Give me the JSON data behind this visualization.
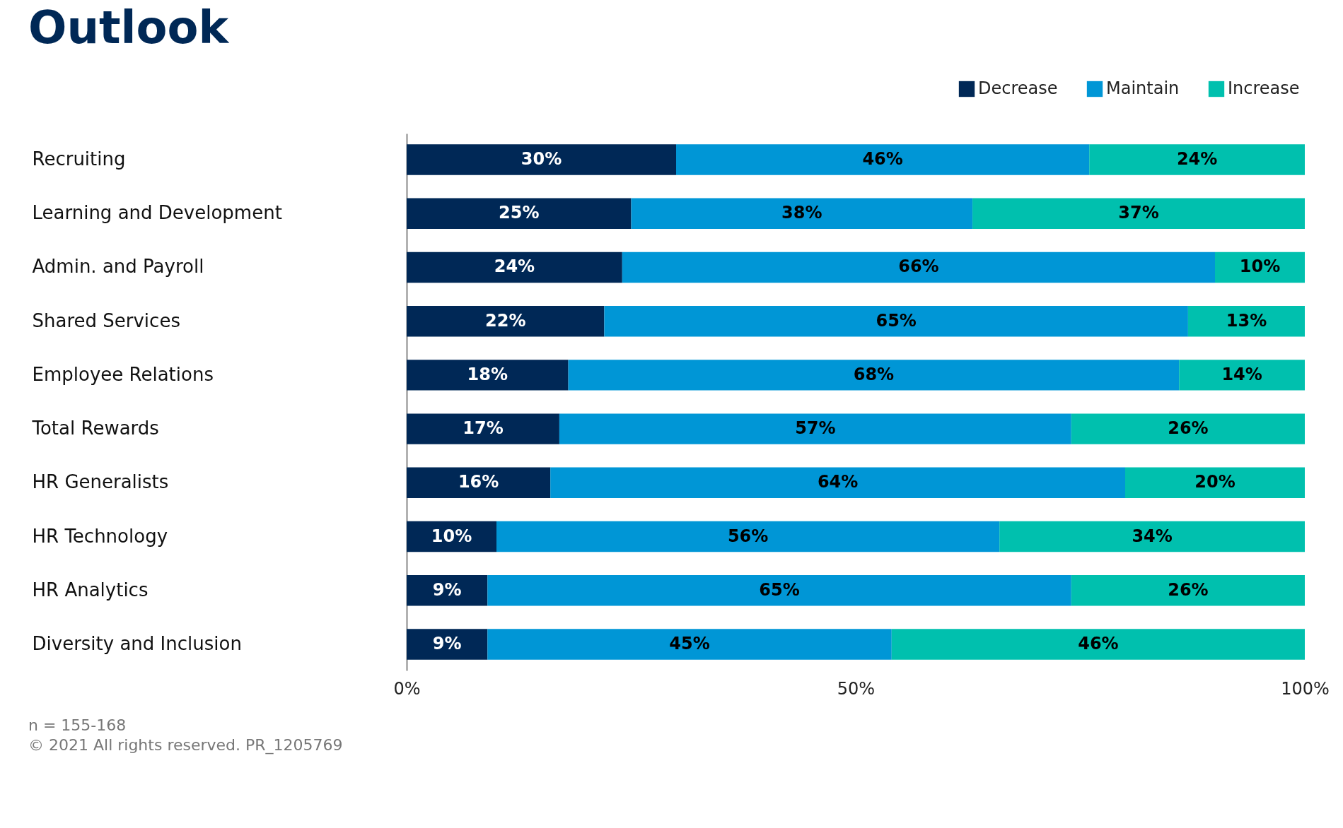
{
  "chart_data": {
    "type": "bar",
    "orientation": "horizontal",
    "stacked": true,
    "title": "Outlook",
    "categories": [
      "Recruiting",
      "Learning and Development",
      "Admin. and Payroll",
      "Shared Services",
      "Employee Relations",
      "Total Rewards",
      "HR Generalists",
      "HR Technology",
      "HR Analytics",
      "Diversity and Inclusion"
    ],
    "series": [
      {
        "name": "Decrease",
        "color": "#002856",
        "values": [
          30,
          25,
          24,
          22,
          18,
          17,
          16,
          10,
          9,
          9
        ],
        "value_labels": [
          "30%",
          "25%",
          "24%",
          "22%",
          "18%",
          "17%",
          "16%",
          "10%",
          "9%",
          "9%"
        ]
      },
      {
        "name": "Maintain",
        "color": "#0096d6",
        "values": [
          46,
          38,
          66,
          65,
          68,
          57,
          64,
          56,
          65,
          45
        ],
        "value_labels": [
          "46%",
          "38%",
          "66%",
          "65%",
          "68%",
          "57%",
          "64%",
          "56%",
          "65%",
          "45%"
        ]
      },
      {
        "name": "Increase",
        "color": "#00c0ae",
        "values": [
          24,
          37,
          10,
          13,
          14,
          26,
          20,
          34,
          26,
          46
        ],
        "value_labels": [
          "24%",
          "37%",
          "10%",
          "13%",
          "14%",
          "26%",
          "20%",
          "34%",
          "26%",
          "46%"
        ]
      }
    ],
    "xlim": [
      0,
      100
    ],
    "xticks": [
      {
        "value": 0,
        "label": "0%"
      },
      {
        "value": 50,
        "label": "50%"
      },
      {
        "value": 100,
        "label": "100%"
      }
    ],
    "grid": false,
    "legend": "top right",
    "annotations": [
      "n = 155-168",
      "© 2021 All rights reserved. PR_1205769"
    ]
  }
}
